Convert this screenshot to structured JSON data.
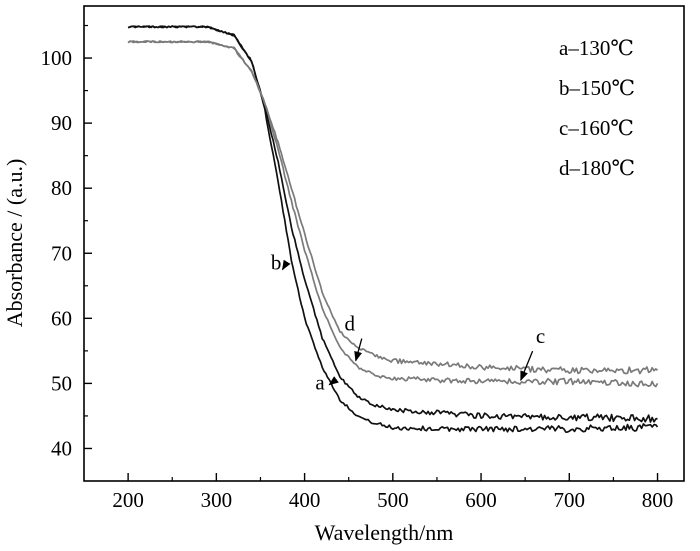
{
  "chart_data": {
    "type": "line",
    "xlabel": "Wavelength/nm",
    "ylabel": "Absorbance / (a.u.)",
    "xlim": [
      150,
      830
    ],
    "ylim": [
      35,
      108
    ],
    "x_ticks": [
      200,
      300,
      400,
      500,
      600,
      700,
      800
    ],
    "y_ticks": [
      40,
      50,
      60,
      70,
      80,
      90,
      100
    ],
    "grid": false,
    "legend_position": "top-right",
    "legend": [
      "a–130℃",
      "b–150℃",
      "c–160℃",
      "d–180℃"
    ],
    "series": [
      {
        "name": "a",
        "color": "#111111",
        "x": [
          200,
          290,
          320,
          340,
          355,
          370,
          385,
          400,
          420,
          440,
          460,
          480,
          500,
          550,
          600,
          700,
          800
        ],
        "y": [
          104.8,
          104.8,
          103.5,
          99.5,
          92.0,
          81.0,
          69.0,
          60.0,
          52.5,
          47.5,
          45.0,
          43.8,
          43.2,
          43.0,
          43.0,
          43.0,
          43.3
        ]
      },
      {
        "name": "b",
        "color": "#111111",
        "x": [
          200,
          290,
          320,
          340,
          355,
          370,
          385,
          400,
          420,
          440,
          460,
          480,
          500,
          550,
          600,
          700,
          800
        ],
        "y": [
          104.8,
          104.8,
          103.5,
          99.5,
          92.5,
          84.0,
          74.0,
          66.0,
          57.0,
          51.0,
          48.0,
          46.5,
          46.0,
          45.5,
          45.0,
          44.8,
          44.6
        ]
      },
      {
        "name": "c",
        "color": "#7a7a7a",
        "x": [
          200,
          290,
          320,
          340,
          355,
          370,
          385,
          400,
          420,
          440,
          460,
          480,
          500,
          550,
          600,
          700,
          800
        ],
        "y": [
          102.5,
          102.5,
          101.5,
          98.0,
          93.0,
          86.0,
          78.0,
          70.5,
          61.5,
          55.5,
          52.5,
          51.3,
          50.8,
          50.5,
          50.3,
          50.3,
          50.0
        ]
      },
      {
        "name": "d",
        "color": "#7a7a7a",
        "x": [
          200,
          290,
          320,
          340,
          355,
          370,
          385,
          400,
          420,
          440,
          460,
          480,
          500,
          550,
          600,
          700,
          800
        ],
        "y": [
          102.5,
          102.5,
          101.5,
          98.0,
          93.0,
          87.0,
          80.0,
          73.0,
          64.0,
          58.0,
          55.5,
          54.3,
          53.5,
          53.0,
          52.5,
          52.0,
          52.0
        ]
      }
    ],
    "annotations": [
      {
        "text": "a",
        "x": 422,
        "y": 49.8,
        "arrow_to": [
          428,
          49.8
        ]
      },
      {
        "text": "b",
        "x": 370,
        "y": 67.5,
        "arrow_to": [
          375,
          67.5
        ]
      },
      {
        "text": "c",
        "x": 672,
        "y": 56.5,
        "arrow_to": [
          645,
          50.5
        ]
      },
      {
        "text": "d",
        "x": 458,
        "y": 57.5,
        "arrow_to": [
          458,
          53.5
        ]
      }
    ]
  }
}
